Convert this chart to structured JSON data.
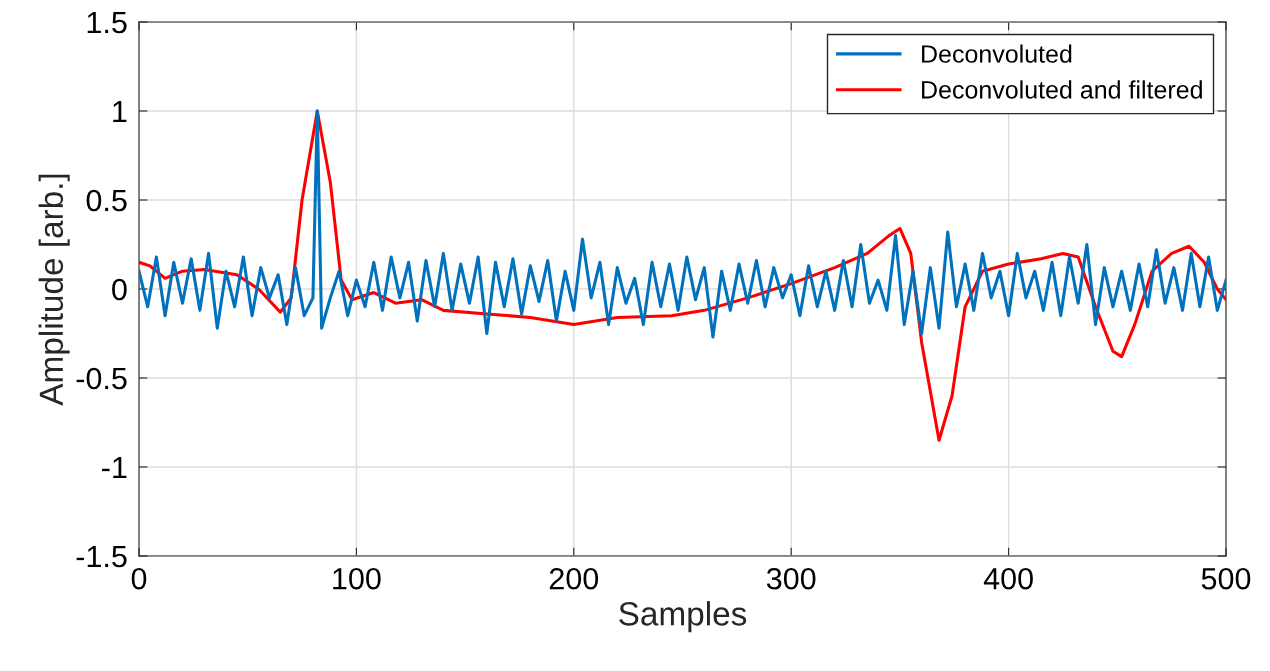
{
  "chart_data": {
    "type": "line",
    "xlabel": "Samples",
    "ylabel": "Amplitude [arb.]",
    "xlim": [
      0,
      500
    ],
    "ylim": [
      -1.5,
      1.5
    ],
    "xticks": [
      0,
      100,
      200,
      300,
      400,
      500
    ],
    "yticks": [
      -1.5,
      -1,
      -0.5,
      0,
      0.5,
      1,
      1.5
    ],
    "grid": true,
    "legend": "top right",
    "series": [
      {
        "name": "Deconvoluted",
        "color": "#0072bd",
        "x": [
          0,
          4,
          8,
          12,
          16,
          20,
          24,
          28,
          32,
          36,
          40,
          44,
          48,
          52,
          56,
          60,
          64,
          68,
          72,
          76,
          80,
          82,
          84,
          88,
          92,
          96,
          100,
          104,
          108,
          112,
          116,
          120,
          124,
          128,
          132,
          136,
          140,
          144,
          148,
          152,
          156,
          160,
          164,
          168,
          172,
          176,
          180,
          184,
          188,
          192,
          196,
          200,
          204,
          208,
          212,
          216,
          220,
          224,
          228,
          232,
          236,
          240,
          244,
          248,
          252,
          256,
          260,
          264,
          268,
          272,
          276,
          280,
          284,
          288,
          292,
          296,
          300,
          304,
          308,
          312,
          316,
          320,
          324,
          328,
          332,
          336,
          340,
          344,
          348,
          352,
          356,
          360,
          364,
          368,
          372,
          376,
          380,
          384,
          388,
          392,
          396,
          400,
          404,
          408,
          412,
          416,
          420,
          424,
          428,
          432,
          436,
          440,
          444,
          448,
          452,
          456,
          460,
          464,
          468,
          472,
          476,
          480,
          484,
          488,
          492,
          496,
          500
        ],
        "values": [
          0.1,
          -0.1,
          0.18,
          -0.15,
          0.15,
          -0.08,
          0.17,
          -0.12,
          0.2,
          -0.22,
          0.1,
          -0.1,
          0.18,
          -0.15,
          0.12,
          -0.05,
          0.08,
          -0.2,
          0.12,
          -0.15,
          -0.05,
          1.0,
          -0.22,
          -0.05,
          0.1,
          -0.15,
          0.05,
          -0.1,
          0.15,
          -0.12,
          0.18,
          -0.05,
          0.15,
          -0.18,
          0.16,
          -0.1,
          0.2,
          -0.12,
          0.14,
          -0.08,
          0.18,
          -0.25,
          0.15,
          -0.1,
          0.17,
          -0.14,
          0.13,
          -0.07,
          0.16,
          -0.18,
          0.1,
          -0.12,
          0.28,
          -0.05,
          0.15,
          -0.2,
          0.12,
          -0.08,
          0.06,
          -0.2,
          0.15,
          -0.1,
          0.14,
          -0.12,
          0.18,
          -0.06,
          0.12,
          -0.27,
          0.1,
          -0.12,
          0.14,
          -0.08,
          0.16,
          -0.1,
          0.12,
          -0.05,
          0.08,
          -0.15,
          0.13,
          -0.1,
          0.1,
          -0.12,
          0.16,
          -0.1,
          0.25,
          -0.08,
          0.05,
          -0.12,
          0.3,
          -0.2,
          0.1,
          -0.25,
          0.12,
          -0.22,
          0.32,
          -0.1,
          0.14,
          -0.12,
          0.2,
          -0.05,
          0.1,
          -0.15,
          0.2,
          -0.05,
          0.1,
          -0.12,
          0.15,
          -0.15,
          0.18,
          -0.08,
          0.25,
          -0.2,
          0.12,
          -0.1,
          0.1,
          -0.12,
          0.14,
          -0.1,
          0.22,
          -0.08,
          0.12,
          -0.12,
          0.2,
          -0.1,
          0.18,
          -0.12,
          0.05
        ]
      },
      {
        "name": "Deconvoluted and filtered",
        "color": "#ff0000",
        "x": [
          0,
          5,
          12,
          20,
          30,
          45,
          55,
          65,
          70,
          75,
          82,
          88,
          93,
          98,
          108,
          118,
          130,
          140,
          160,
          180,
          200,
          210,
          220,
          245,
          260,
          280,
          300,
          320,
          335,
          345,
          350,
          355,
          360,
          368,
          374,
          380,
          388,
          400,
          415,
          425,
          432,
          440,
          448,
          452,
          458,
          466,
          475,
          483,
          490,
          496,
          500
        ],
        "values": [
          0.15,
          0.13,
          0.06,
          0.1,
          0.11,
          0.08,
          0.0,
          -0.13,
          -0.05,
          0.5,
          1.0,
          0.6,
          0.05,
          -0.06,
          -0.02,
          -0.08,
          -0.06,
          -0.12,
          -0.14,
          -0.16,
          -0.2,
          -0.18,
          -0.16,
          -0.15,
          -0.12,
          -0.05,
          0.03,
          0.12,
          0.2,
          0.3,
          0.34,
          0.2,
          -0.3,
          -0.85,
          -0.6,
          -0.1,
          0.1,
          0.14,
          0.17,
          0.2,
          0.18,
          -0.1,
          -0.35,
          -0.38,
          -0.2,
          0.1,
          0.2,
          0.24,
          0.15,
          0.0,
          -0.06
        ]
      }
    ]
  }
}
